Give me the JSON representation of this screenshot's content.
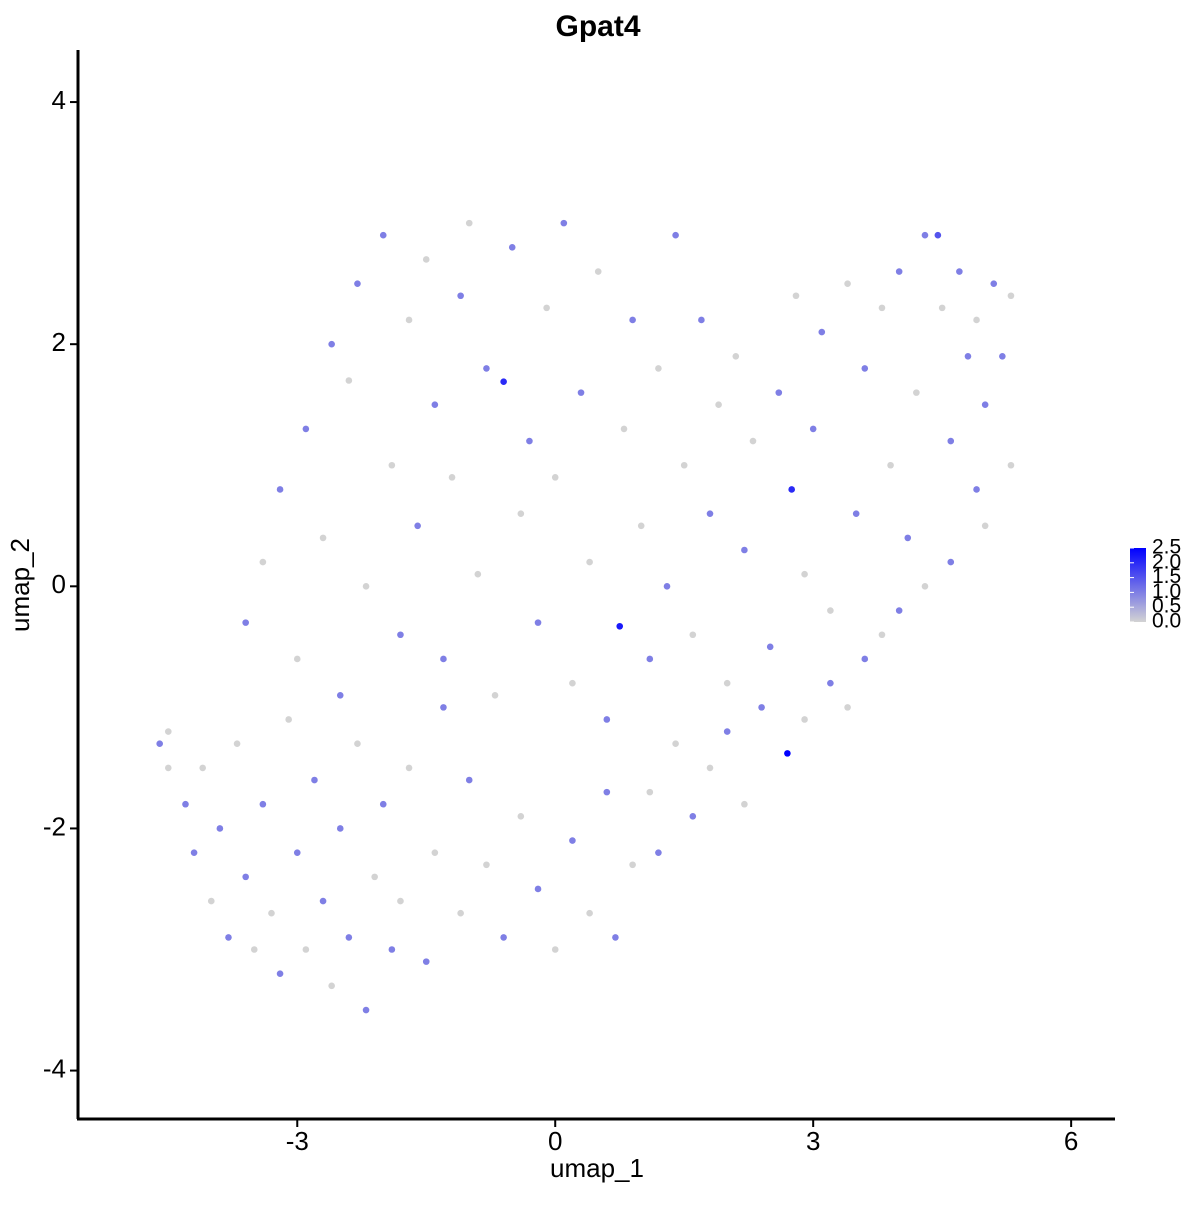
{
  "chart_data": {
    "type": "scatter",
    "title": "Gpat4",
    "x_label": "umap_1",
    "y_label": "umap_2",
    "x": [
      -4.6,
      -4.5,
      -4.5,
      -4.3,
      -4.2,
      -4.1,
      -4.0,
      -3.9,
      -3.8,
      -3.7,
      -3.6,
      -3.5,
      -3.4,
      -3.3,
      -3.2,
      -3.1,
      -3.0,
      -2.9,
      -2.8,
      -2.7,
      -2.6,
      -2.5,
      -2.4,
      -2.3,
      -2.2,
      -2.1,
      -2.0,
      -1.9,
      -1.8,
      -1.7,
      -1.5,
      -1.4,
      -1.3,
      -1.1,
      -1.0,
      -0.8,
      -0.6,
      -0.4,
      -0.2,
      0.0,
      0.2,
      0.4,
      0.6,
      0.7,
      0.9,
      1.1,
      1.2,
      1.4,
      1.6,
      1.8,
      2.0,
      2.2,
      2.4,
      2.7,
      2.9,
      3.2,
      3.4,
      3.6,
      3.8,
      4.0,
      4.3,
      4.6,
      4.9,
      5.0,
      -3.6,
      -3.4,
      -3.2,
      -3.0,
      -2.9,
      -2.7,
      -2.6,
      -2.5,
      -2.4,
      -2.3,
      -2.2,
      -2.0,
      -1.9,
      -1.8,
      -1.7,
      -1.6,
      -1.5,
      -1.4,
      -1.3,
      -1.2,
      -1.1,
      -1.0,
      -0.9,
      -0.8,
      -0.7,
      -0.6,
      -0.5,
      -0.4,
      -0.3,
      -0.2,
      -0.1,
      0.0,
      0.1,
      0.2,
      0.3,
      0.4,
      0.5,
      0.6,
      0.75,
      0.8,
      0.9,
      1.0,
      1.1,
      1.2,
      1.3,
      1.4,
      1.5,
      1.6,
      1.7,
      1.8,
      1.9,
      2.0,
      2.1,
      2.2,
      2.3,
      2.5,
      2.6,
      2.75,
      2.8,
      2.9,
      3.0,
      3.1,
      3.2,
      3.4,
      3.5,
      3.6,
      3.8,
      3.9,
      4.0,
      4.1,
      4.2,
      4.3,
      4.45,
      4.5,
      4.6,
      4.7,
      4.8,
      4.9,
      5.0,
      5.1,
      5.2,
      5.3,
      5.3
    ],
    "y": [
      -1.3,
      -1.2,
      -1.5,
      -1.8,
      -2.2,
      -1.5,
      -2.6,
      -2.0,
      -2.9,
      -1.3,
      -2.4,
      -3.0,
      -1.8,
      -2.7,
      -3.2,
      -1.1,
      -2.2,
      -3.0,
      -1.6,
      -2.6,
      -3.3,
      -2.0,
      -2.9,
      -1.3,
      -3.5,
      -2.4,
      -1.8,
      -3.0,
      -2.6,
      -1.5,
      -3.1,
      -2.2,
      -1.0,
      -2.7,
      -1.6,
      -2.3,
      -2.9,
      -1.9,
      -2.5,
      -3.0,
      -2.1,
      -2.7,
      -1.7,
      -2.9,
      -2.3,
      -1.7,
      -2.2,
      -1.3,
      -1.9,
      -1.5,
      -1.2,
      -1.8,
      -1.0,
      -1.38,
      -1.1,
      -0.8,
      -1.0,
      -0.6,
      -0.4,
      -0.2,
      0.0,
      0.2,
      0.8,
      0.5,
      -0.3,
      0.2,
      0.8,
      -0.6,
      1.3,
      0.4,
      2.0,
      -0.9,
      1.7,
      2.5,
      0.0,
      2.9,
      1.0,
      -0.4,
      2.2,
      0.5,
      2.7,
      1.5,
      -0.6,
      0.9,
      2.4,
      3.0,
      0.1,
      1.8,
      -0.9,
      1.69,
      2.8,
      0.6,
      1.2,
      -0.3,
      2.3,
      0.9,
      3.0,
      -0.8,
      1.6,
      0.2,
      2.6,
      -1.1,
      -0.33,
      1.3,
      2.2,
      0.5,
      -0.6,
      1.8,
      0.0,
      2.9,
      1.0,
      -0.4,
      2.2,
      0.6,
      1.5,
      -0.8,
      1.9,
      0.3,
      1.2,
      -0.5,
      1.6,
      0.8,
      2.4,
      0.1,
      1.3,
      2.1,
      -0.2,
      2.5,
      0.6,
      1.8,
      2.3,
      1.0,
      2.6,
      0.4,
      1.6,
      2.9,
      2.9,
      2.3,
      1.2,
      2.6,
      1.9,
      2.2,
      1.5,
      2.5,
      1.9,
      2.4,
      1.0
    ],
    "values": [
      1,
      0,
      0,
      1,
      1,
      0,
      0,
      1,
      1,
      0,
      1,
      0,
      1,
      0,
      1,
      0,
      1,
      0,
      1,
      1,
      0,
      1,
      1,
      0,
      1,
      0,
      1,
      1,
      0,
      0,
      1,
      0,
      1,
      0,
      1,
      0,
      1,
      0,
      1,
      0,
      1,
      0,
      1,
      1,
      0,
      0,
      1,
      0,
      1,
      0,
      1,
      0,
      1,
      2.5,
      0,
      1,
      0,
      1,
      0,
      1,
      0,
      1,
      1,
      0,
      1,
      0,
      1,
      0,
      1,
      0,
      1,
      1,
      0,
      1,
      0,
      1,
      0,
      1,
      0,
      1,
      0,
      1,
      1,
      0,
      1,
      0,
      0,
      1,
      0,
      2.0,
      1,
      0,
      1,
      1,
      0,
      0,
      1,
      0,
      1,
      0,
      0,
      1,
      2.2,
      0,
      1,
      0,
      1,
      0,
      1,
      1,
      0,
      0,
      1,
      1,
      0,
      0,
      0,
      1,
      0,
      1,
      1,
      2.0,
      0,
      0,
      1,
      1,
      0,
      0,
      1,
      1,
      0,
      0,
      1,
      1,
      0,
      1,
      1.5,
      0,
      1,
      1,
      1,
      0,
      1,
      1,
      1,
      0,
      0
    ],
    "xlim": [
      -5.55,
      6.51
    ],
    "ylim": [
      -4.4,
      4.43
    ],
    "xticks": [
      -3,
      0,
      3,
      6
    ],
    "yticks": [
      -4,
      -2,
      0,
      2,
      4
    ],
    "colorbar": {
      "lim": [
        0,
        2.5
      ],
      "colors": [
        "#d3d3d3",
        "#0000ff"
      ],
      "ticks": [
        {
          "value": 0,
          "label": "0.0"
        },
        0.5,
        {
          "value": 1,
          "label": "1.0"
        },
        1.5,
        {
          "value": 2,
          "label": "2.0"
        },
        2.5
      ]
    }
  }
}
